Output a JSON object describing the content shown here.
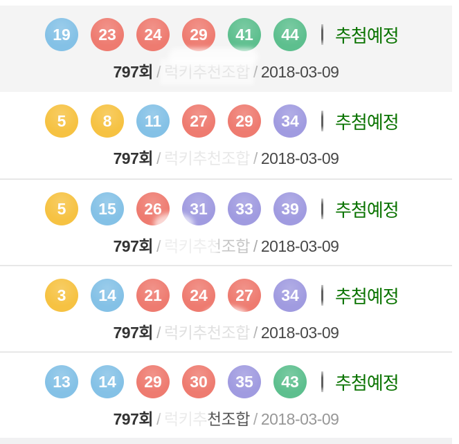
{
  "colors": {
    "ball_yellow": "#f6c242",
    "ball_blue": "#84c1e6",
    "ball_red": "#ee7b70",
    "ball_purple": "#a09be0",
    "ball_green": "#5dbf8e",
    "status_text": "#0a7300"
  },
  "labels": {
    "status": "추첨예정",
    "separator": "/"
  },
  "rows": [
    {
      "balls": [
        {
          "value": "19",
          "color": "ball_blue"
        },
        {
          "value": "23",
          "color": "ball_red"
        },
        {
          "value": "24",
          "color": "ball_red"
        },
        {
          "value": "29",
          "color": "ball_red"
        },
        {
          "value": "41",
          "color": "ball_green"
        },
        {
          "value": "44",
          "color": "ball_green"
        }
      ],
      "round": "797",
      "round_suffix": "회",
      "combo": "럭키추천조합",
      "date": "2018-03-09"
    },
    {
      "balls": [
        {
          "value": "5",
          "color": "ball_yellow"
        },
        {
          "value": "8",
          "color": "ball_yellow"
        },
        {
          "value": "11",
          "color": "ball_blue"
        },
        {
          "value": "27",
          "color": "ball_red"
        },
        {
          "value": "29",
          "color": "ball_red"
        },
        {
          "value": "34",
          "color": "ball_purple"
        }
      ],
      "round": "797",
      "round_suffix": "회",
      "combo": "럭키추천조합",
      "date": "2018-03-09"
    },
    {
      "balls": [
        {
          "value": "5",
          "color": "ball_yellow"
        },
        {
          "value": "15",
          "color": "ball_blue"
        },
        {
          "value": "26",
          "color": "ball_red"
        },
        {
          "value": "31",
          "color": "ball_purple"
        },
        {
          "value": "33",
          "color": "ball_purple"
        },
        {
          "value": "39",
          "color": "ball_purple"
        }
      ],
      "round": "797",
      "round_suffix": "회",
      "combo": "럭키추천조합",
      "date": "2018-03-09"
    },
    {
      "balls": [
        {
          "value": "3",
          "color": "ball_yellow"
        },
        {
          "value": "14",
          "color": "ball_blue"
        },
        {
          "value": "21",
          "color": "ball_red"
        },
        {
          "value": "24",
          "color": "ball_red"
        },
        {
          "value": "27",
          "color": "ball_red"
        },
        {
          "value": "34",
          "color": "ball_purple"
        }
      ],
      "round": "797",
      "round_suffix": "회",
      "combo": "럭키추천조합",
      "date": "2018-03-09"
    },
    {
      "balls": [
        {
          "value": "13",
          "color": "ball_blue"
        },
        {
          "value": "14",
          "color": "ball_blue"
        },
        {
          "value": "29",
          "color": "ball_red"
        },
        {
          "value": "30",
          "color": "ball_red"
        },
        {
          "value": "35",
          "color": "ball_purple"
        },
        {
          "value": "43",
          "color": "ball_green"
        }
      ],
      "round": "797",
      "round_suffix": "회",
      "combo": "럭키추천조합",
      "date": "2018-03-09"
    }
  ]
}
